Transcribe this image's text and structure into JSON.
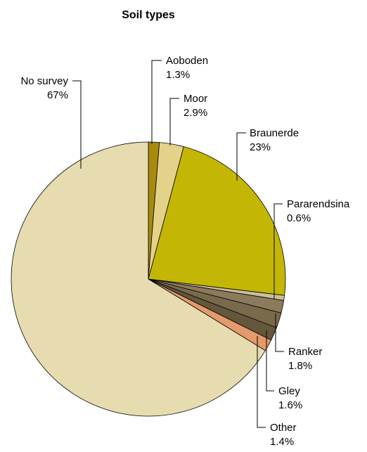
{
  "chart_data": {
    "type": "pie",
    "title": "Soil types",
    "start_angle_deg": 0,
    "direction": "clockwise",
    "slices": [
      {
        "label": "Aoboden",
        "value": 1.3,
        "display": "1.3%",
        "color": "#a88a0e"
      },
      {
        "label": "Moor",
        "value": 2.9,
        "display": "2.9%",
        "color": "#e4d28a"
      },
      {
        "label": "Braunerde",
        "value": 23,
        "display": "23%",
        "color": "#c4b604"
      },
      {
        "label": "Pararendsina",
        "value": 0.6,
        "display": "0.6%",
        "color": "#cbbf98"
      },
      {
        "label": "",
        "value": 1.5,
        "display": "",
        "color": "#8c7a5c"
      },
      {
        "label": "Ranker",
        "value": 1.8,
        "display": "1.8%",
        "color": "#7a6a4c"
      },
      {
        "label": "Gley",
        "value": 1.6,
        "display": "1.6%",
        "color": "#64573c"
      },
      {
        "label": "Other",
        "value": 1.4,
        "display": "1.4%",
        "color": "#e49a6a"
      },
      {
        "label": "No survey",
        "value": 67,
        "display": "67%",
        "color": "#e6dcb0"
      }
    ]
  }
}
